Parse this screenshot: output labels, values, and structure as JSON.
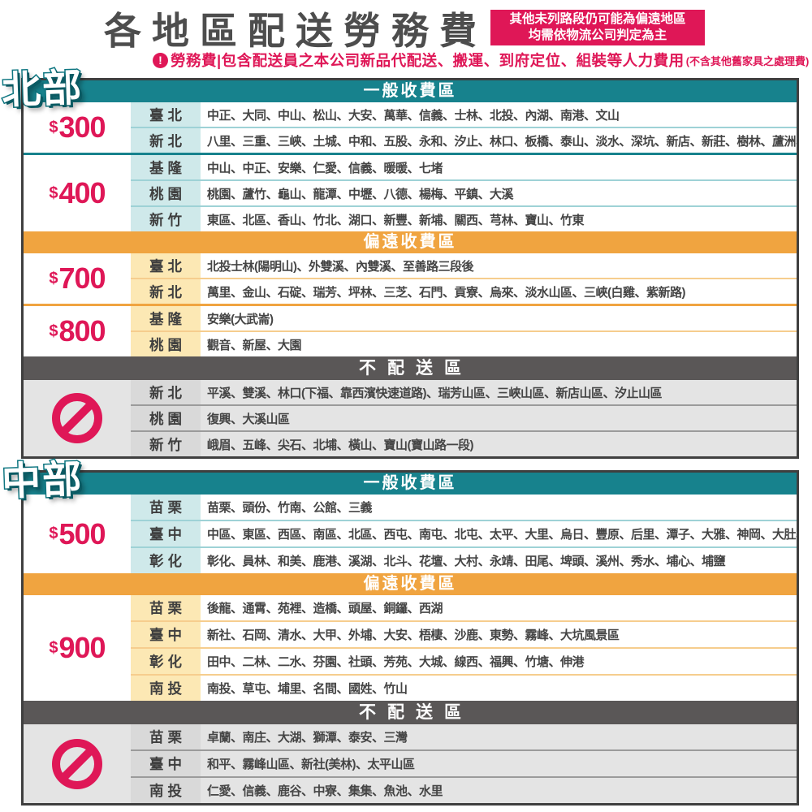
{
  "title": "各地區配送勞務費",
  "title_note": {
    "line1": "其他未列路段仍可能為偏遠地區",
    "line2": "均需依物流公司判定為主"
  },
  "subtitle": {
    "icon": "alert-icon",
    "text": "勞務費|包含配送員之本公司新品代配送、搬運、到府定位、組裝等人力費用",
    "suffix": "(不含其他舊家具之處理費)"
  },
  "colors": {
    "teal": "#17828d",
    "orange": "#f0a440",
    "crimson": "#df1757",
    "dark_header": "#5a5757",
    "teal_label_bg": "#cfe9ea",
    "orange_label_bg": "#fce8b4",
    "gray_label_bg": "#d9d9d9"
  },
  "sections": [
    {
      "badge": "北部",
      "zones": [
        {
          "type": "general",
          "header": "一般收費區",
          "groups": [
            {
              "price": {
                "currency": "$",
                "amount": "300"
              },
              "rows": [
                {
                  "region": "臺北",
                  "areas": "中正、大同、中山、松山、大安、萬華、信義、士林、北投、內湖、南港、文山"
                },
                {
                  "region": "新北",
                  "areas": "八里、三重、三峽、土城、中和、五股、永和、汐止、林口、板橋、泰山、淡水、深坑、新店、新莊、樹林、蘆洲、鶯歌"
                }
              ]
            },
            {
              "price": {
                "currency": "$",
                "amount": "400"
              },
              "rows": [
                {
                  "region": "基隆",
                  "areas": "中山、中正、安樂、仁愛、信義、暖暖、七堵"
                },
                {
                  "region": "桃園",
                  "areas": "桃園、蘆竹、龜山、龍潭、中壢、八德、楊梅、平鎮、大溪"
                },
                {
                  "region": "新竹",
                  "areas": "東區、北區、香山、竹北、湖口、新豐、新埔、關西、芎林、寶山、竹東"
                }
              ]
            }
          ]
        },
        {
          "type": "remote",
          "header": "偏遠收費區",
          "groups": [
            {
              "price": {
                "currency": "$",
                "amount": "700"
              },
              "rows": [
                {
                  "region": "臺北",
                  "areas": "北投士林(陽明山)、外雙溪、內雙溪、至善路三段後"
                },
                {
                  "region": "新北",
                  "areas": "萬里、金山、石碇、瑞芳、坪林、三芝、石門、貢寮、烏來、淡水山區、三峽(白雞、紫新路)"
                }
              ]
            },
            {
              "price": {
                "currency": "$",
                "amount": "800"
              },
              "rows": [
                {
                  "region": "基隆",
                  "areas": "安樂(大武崙)"
                },
                {
                  "region": "桃園",
                  "areas": "觀音、新屋、大園"
                }
              ]
            }
          ]
        },
        {
          "type": "no-delivery",
          "header": "不配送區",
          "groups": [
            {
              "icon": "no-delivery-icon",
              "rows": [
                {
                  "region": "新北",
                  "areas": "平溪、雙溪、林口(下福、靠西濱快速道路)、瑞芳山區、三峽山區、新店山區、汐止山區"
                },
                {
                  "region": "桃園",
                  "areas": "復興、大溪山區"
                },
                {
                  "region": "新竹",
                  "areas": "峨眉、五峰、尖石、北埔、橫山、寶山(寶山路一段)"
                }
              ]
            }
          ]
        }
      ]
    },
    {
      "badge": "中部",
      "zones": [
        {
          "type": "general",
          "header": "一般收費區",
          "groups": [
            {
              "price": {
                "currency": "$",
                "amount": "500"
              },
              "rows": [
                {
                  "region": "苗栗",
                  "areas": "苗栗、頭份、竹南、公館、三義"
                },
                {
                  "region": "臺中",
                  "areas": "中區、東區、西區、南區、北區、西屯、南屯、北屯、太平、大里、烏日、豐原、后里、潭子、大雅、神岡、大肚、龍井"
                },
                {
                  "region": "彰化",
                  "areas": "彰化、員林、和美、鹿港、溪湖、北斗、花壇、大村、永靖、田尾、埤頭、溪州、秀水、埔心、埔鹽"
                }
              ]
            }
          ]
        },
        {
          "type": "remote",
          "header": "偏遠收費區",
          "groups": [
            {
              "price": {
                "currency": "$",
                "amount": "900"
              },
              "rows": [
                {
                  "region": "苗栗",
                  "areas": "後龍、通霄、苑裡、造橋、頭屋、銅鑼、西湖"
                },
                {
                  "region": "臺中",
                  "areas": "新社、石岡、清水、大甲、外埔、大安、梧棲、沙鹿、東勢、霧峰、大坑風景區"
                },
                {
                  "region": "彰化",
                  "areas": "田中、二林、二水、芬園、社頭、芳苑、大城、線西、福興、竹塘、伸港"
                },
                {
                  "region": "南投",
                  "areas": "南投、草屯、埔里、名間、國姓、竹山"
                }
              ]
            }
          ]
        },
        {
          "type": "no-delivery",
          "header": "不配送區",
          "groups": [
            {
              "icon": "no-delivery-icon",
              "rows": [
                {
                  "region": "苗栗",
                  "areas": "卓蘭、南庄、大湖、獅潭、泰安、三灣"
                },
                {
                  "region": "臺中",
                  "areas": "和平、霧峰山區、新社(美林)、太平山區"
                },
                {
                  "region": "南投",
                  "areas": "仁愛、信義、鹿谷、中寮、集集、魚池、水里"
                }
              ]
            }
          ]
        }
      ]
    }
  ]
}
